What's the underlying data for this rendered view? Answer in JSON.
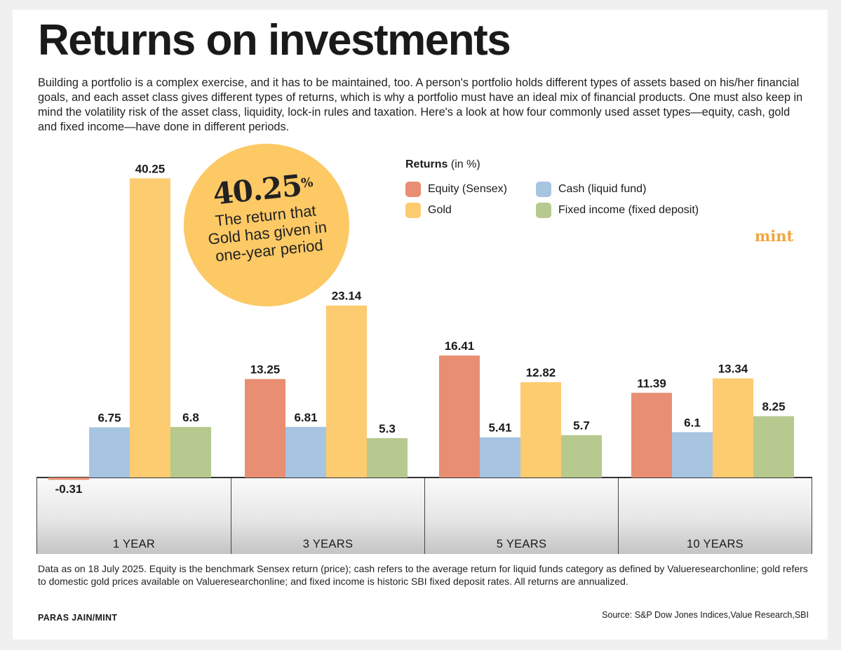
{
  "header": {
    "title": "Returns on investments",
    "intro": "Building a portfolio is a complex exercise, and it has to be maintained, too. A person's portfolio holds different types of assets based on his/her financial goals, and each asset class gives different types of returns, which is why a portfolio must have an ideal mix of financial products. One must also keep in mind the volatility risk of the asset class, liquidity, lock-in rules and taxation. Here's a look at how four commonly used asset types—equity, cash, gold and fixed income—have done in different periods."
  },
  "legend": {
    "title_bold": "Returns",
    "title_rest": " (in %)"
  },
  "callout": {
    "value": "40.25",
    "unit": "%",
    "text": "The return that Gold has given in one-year period"
  },
  "brand": "mint",
  "colors": {
    "equity": "#e88e72",
    "cash": "#a7c4e1",
    "gold": "#fdcb70",
    "fixed": "#b6c98f"
  },
  "chart_data": {
    "type": "bar",
    "categories": [
      "1 YEAR",
      "3 YEARS",
      "5 YEARS",
      "10 YEARS"
    ],
    "series": [
      {
        "name": "Equity (Sensex)",
        "key": "equity",
        "values": [
          -0.31,
          13.25,
          16.41,
          11.39
        ],
        "labels": [
          "-0.31",
          "13.25",
          "16.41",
          "11.39"
        ]
      },
      {
        "name": "Cash (liquid fund)",
        "key": "cash",
        "values": [
          6.75,
          6.81,
          5.41,
          6.1
        ],
        "labels": [
          "6.75",
          "6.81",
          "5.41",
          "6.1"
        ]
      },
      {
        "name": "Gold",
        "key": "gold",
        "values": [
          40.25,
          23.14,
          12.82,
          13.34
        ],
        "labels": [
          "40.25",
          "23.14",
          "12.82",
          "13.34"
        ]
      },
      {
        "name": "Fixed income (fixed deposit)",
        "key": "fixed",
        "values": [
          6.8,
          5.3,
          5.7,
          8.25
        ],
        "labels": [
          "6.8",
          "5.3",
          "5.7",
          "8.25"
        ]
      }
    ],
    "legend_order": [
      "Equity (Sensex)",
      "Cash (liquid fund)",
      "Gold",
      "Fixed income (fixed deposit)"
    ],
    "legend_placement": "top-right",
    "grid": false,
    "ylabel": "Returns (in %)"
  },
  "footer": {
    "note": "Data as on 18 July 2025. Equity is the benchmark Sensex return (price); cash refers to the average return for liquid funds category as defined by Valueresearchonline; gold refers to domestic gold prices available on Valueresearchonline; and fixed income is historic SBI fixed deposit rates. All returns are annualized.",
    "credit": "PARAS JAIN/MINT",
    "source": "Source: S&P Dow Jones Indices,Value Research,SBI"
  }
}
